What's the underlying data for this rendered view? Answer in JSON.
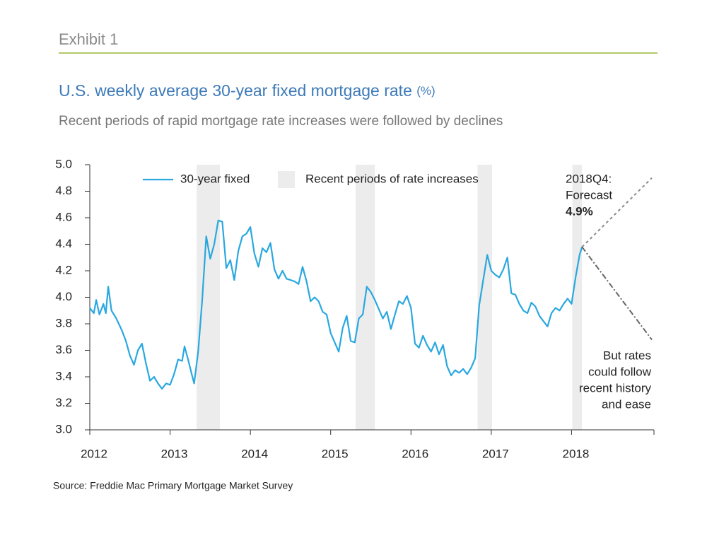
{
  "header": {
    "exhibit": "Exhibit 1",
    "source": "Source: Freddie Mac Primary Mortgage Market Survey"
  },
  "chart_data": {
    "type": "line",
    "title": "U.S. weekly average 30-year fixed mortgage rate",
    "title_unit": "(%)",
    "subtitle": "Recent periods of rapid mortgage rate increases were followed by declines",
    "x": [
      2012.0,
      2012.05,
      2012.08,
      2012.12,
      2012.17,
      2012.2,
      2012.23,
      2012.27,
      2012.33,
      2012.4,
      2012.45,
      2012.5,
      2012.55,
      2012.6,
      2012.65,
      2012.7,
      2012.75,
      2012.8,
      2012.85,
      2012.9,
      2012.95,
      2013.0,
      2013.05,
      2013.1,
      2013.15,
      2013.18,
      2013.22,
      2013.27,
      2013.3,
      2013.35,
      2013.4,
      2013.45,
      2013.5,
      2013.55,
      2013.6,
      2013.65,
      2013.7,
      2013.75,
      2013.8,
      2013.85,
      2013.9,
      2013.95,
      2014.0,
      2014.05,
      2014.1,
      2014.15,
      2014.2,
      2014.25,
      2014.3,
      2014.35,
      2014.4,
      2014.45,
      2014.5,
      2014.55,
      2014.6,
      2014.65,
      2014.7,
      2014.75,
      2014.8,
      2014.85,
      2014.9,
      2014.95,
      2015.0,
      2015.05,
      2015.1,
      2015.15,
      2015.2,
      2015.25,
      2015.3,
      2015.35,
      2015.4,
      2015.45,
      2015.5,
      2015.55,
      2015.6,
      2015.65,
      2015.7,
      2015.75,
      2015.8,
      2015.85,
      2015.9,
      2015.95,
      2016.0,
      2016.05,
      2016.1,
      2016.15,
      2016.2,
      2016.25,
      2016.3,
      2016.35,
      2016.4,
      2016.45,
      2016.5,
      2016.55,
      2016.6,
      2016.65,
      2016.7,
      2016.75,
      2016.8,
      2016.85,
      2016.9,
      2016.95,
      2017.0,
      2017.05,
      2017.1,
      2017.15,
      2017.2,
      2017.25,
      2017.3,
      2017.35,
      2017.4,
      2017.45,
      2017.5,
      2017.55,
      2017.6,
      2017.65,
      2017.7,
      2017.75,
      2017.8,
      2017.85,
      2017.9,
      2017.95,
      2018.0,
      2018.05,
      2018.1,
      2018.13
    ],
    "series": [
      {
        "name": "30-year fixed",
        "color": "#29a8e0",
        "values": [
          3.92,
          3.88,
          3.98,
          3.87,
          3.95,
          3.88,
          4.08,
          3.9,
          3.84,
          3.75,
          3.67,
          3.56,
          3.49,
          3.6,
          3.65,
          3.5,
          3.37,
          3.4,
          3.35,
          3.31,
          3.35,
          3.34,
          3.42,
          3.53,
          3.52,
          3.63,
          3.54,
          3.42,
          3.35,
          3.59,
          3.98,
          4.46,
          4.29,
          4.4,
          4.58,
          4.57,
          4.22,
          4.28,
          4.13,
          4.35,
          4.46,
          4.48,
          4.53,
          4.33,
          4.23,
          4.37,
          4.34,
          4.41,
          4.21,
          4.14,
          4.2,
          4.14,
          4.13,
          4.12,
          4.1,
          4.23,
          4.12,
          3.97,
          4.0,
          3.97,
          3.89,
          3.87,
          3.73,
          3.66,
          3.59,
          3.77,
          3.86,
          3.67,
          3.66,
          3.84,
          3.87,
          4.08,
          4.04,
          3.98,
          3.91,
          3.84,
          3.89,
          3.76,
          3.87,
          3.97,
          3.95,
          4.01,
          3.92,
          3.65,
          3.62,
          3.71,
          3.64,
          3.59,
          3.66,
          3.57,
          3.64,
          3.48,
          3.41,
          3.45,
          3.43,
          3.46,
          3.42,
          3.47,
          3.54,
          3.94,
          4.13,
          4.32,
          4.2,
          4.17,
          4.15,
          4.21,
          4.3,
          4.03,
          4.02,
          3.95,
          3.9,
          3.88,
          3.96,
          3.93,
          3.86,
          3.82,
          3.78,
          3.88,
          3.92,
          3.9,
          3.95,
          3.99,
          3.95,
          4.15,
          4.32,
          4.38
        ]
      }
    ],
    "shaded": {
      "name": "Recent periods of rate increases",
      "color": "#ececec",
      "ranges": [
        [
          2013.33,
          2013.62
        ],
        [
          2015.31,
          2015.55
        ],
        [
          2016.83,
          2017.01
        ],
        [
          2018.01,
          2018.13
        ]
      ]
    },
    "forecast": {
      "x": [
        2018.13,
        2019.0
      ],
      "upper": [
        4.38,
        4.9
      ],
      "lower": [
        4.38,
        3.68
      ],
      "color": "#8a8a8a",
      "label_lines": [
        "2018Q4:",
        "Forecast"
      ],
      "value_label": "4.9%",
      "lower_label_lines": [
        "But rates",
        "could follow",
        "recent history",
        "and ease"
      ]
    },
    "xlim": [
      2012,
      2019
    ],
    "xticks": [
      2012,
      2013,
      2014,
      2015,
      2016,
      2017,
      2018
    ],
    "ylim": [
      3,
      5
    ],
    "yticks": [
      {
        "value": 3,
        "label": "3.0"
      },
      {
        "value": 3.2,
        "label": "3.2"
      },
      {
        "value": 3.4,
        "label": "3.4"
      },
      {
        "value": 3.6,
        "label": "3.6"
      },
      {
        "value": 3.8,
        "label": "3.8"
      },
      {
        "value": 4,
        "label": "4.0"
      },
      {
        "value": 4.2,
        "label": "4.2"
      },
      {
        "value": 4.4,
        "label": "4.4"
      },
      {
        "value": 4.6,
        "label": "4.6"
      },
      {
        "value": 4.8,
        "label": "4.8"
      },
      {
        "value": 5,
        "label": "5.0"
      }
    ]
  }
}
